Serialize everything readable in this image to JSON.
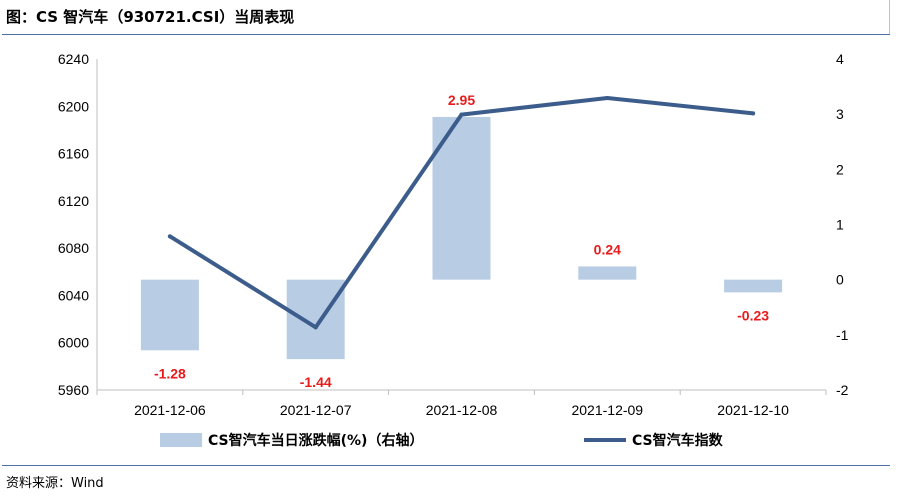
{
  "title": "图：CS 智汽车（930721.CSI）当周表现",
  "source": "资料来源：Wind",
  "legend": {
    "bar_label": "CS智汽车当日涨跌幅(%)（右轴）",
    "line_label": "CS智汽车指数"
  },
  "colors": {
    "bar": "#b8cce4",
    "line": "#3c5d8c",
    "bar_label": "#e81c1c",
    "rule": "#4f6fa8"
  },
  "chart_data": {
    "type": "bar",
    "categories": [
      "2021-12-06",
      "2021-12-07",
      "2021-12-08",
      "2021-12-09",
      "2021-12-10"
    ],
    "series": [
      {
        "name": "CS智汽车当日涨跌幅(%)（右轴）",
        "type": "bar",
        "axis": "right",
        "values": [
          -1.28,
          -1.44,
          2.95,
          0.24,
          -0.23
        ]
      },
      {
        "name": "CS智汽车指数",
        "type": "line",
        "axis": "left",
        "values": [
          6090,
          6013,
          6193,
          6207,
          6194
        ]
      }
    ],
    "y_left": {
      "min": 5960,
      "max": 6240,
      "ticks": [
        "5960",
        "6000",
        "6040",
        "6080",
        "6120",
        "6160",
        "6200",
        "6240"
      ]
    },
    "y_right": {
      "min": -2,
      "max": 4,
      "ticks": [
        "-2",
        "-1",
        "0",
        "1",
        "2",
        "3",
        "4"
      ]
    },
    "data_labels": [
      "-1.28",
      "-1.44",
      "2.95",
      "0.24",
      "-0.23"
    ],
    "grid": false,
    "legend_position": "bottom"
  }
}
